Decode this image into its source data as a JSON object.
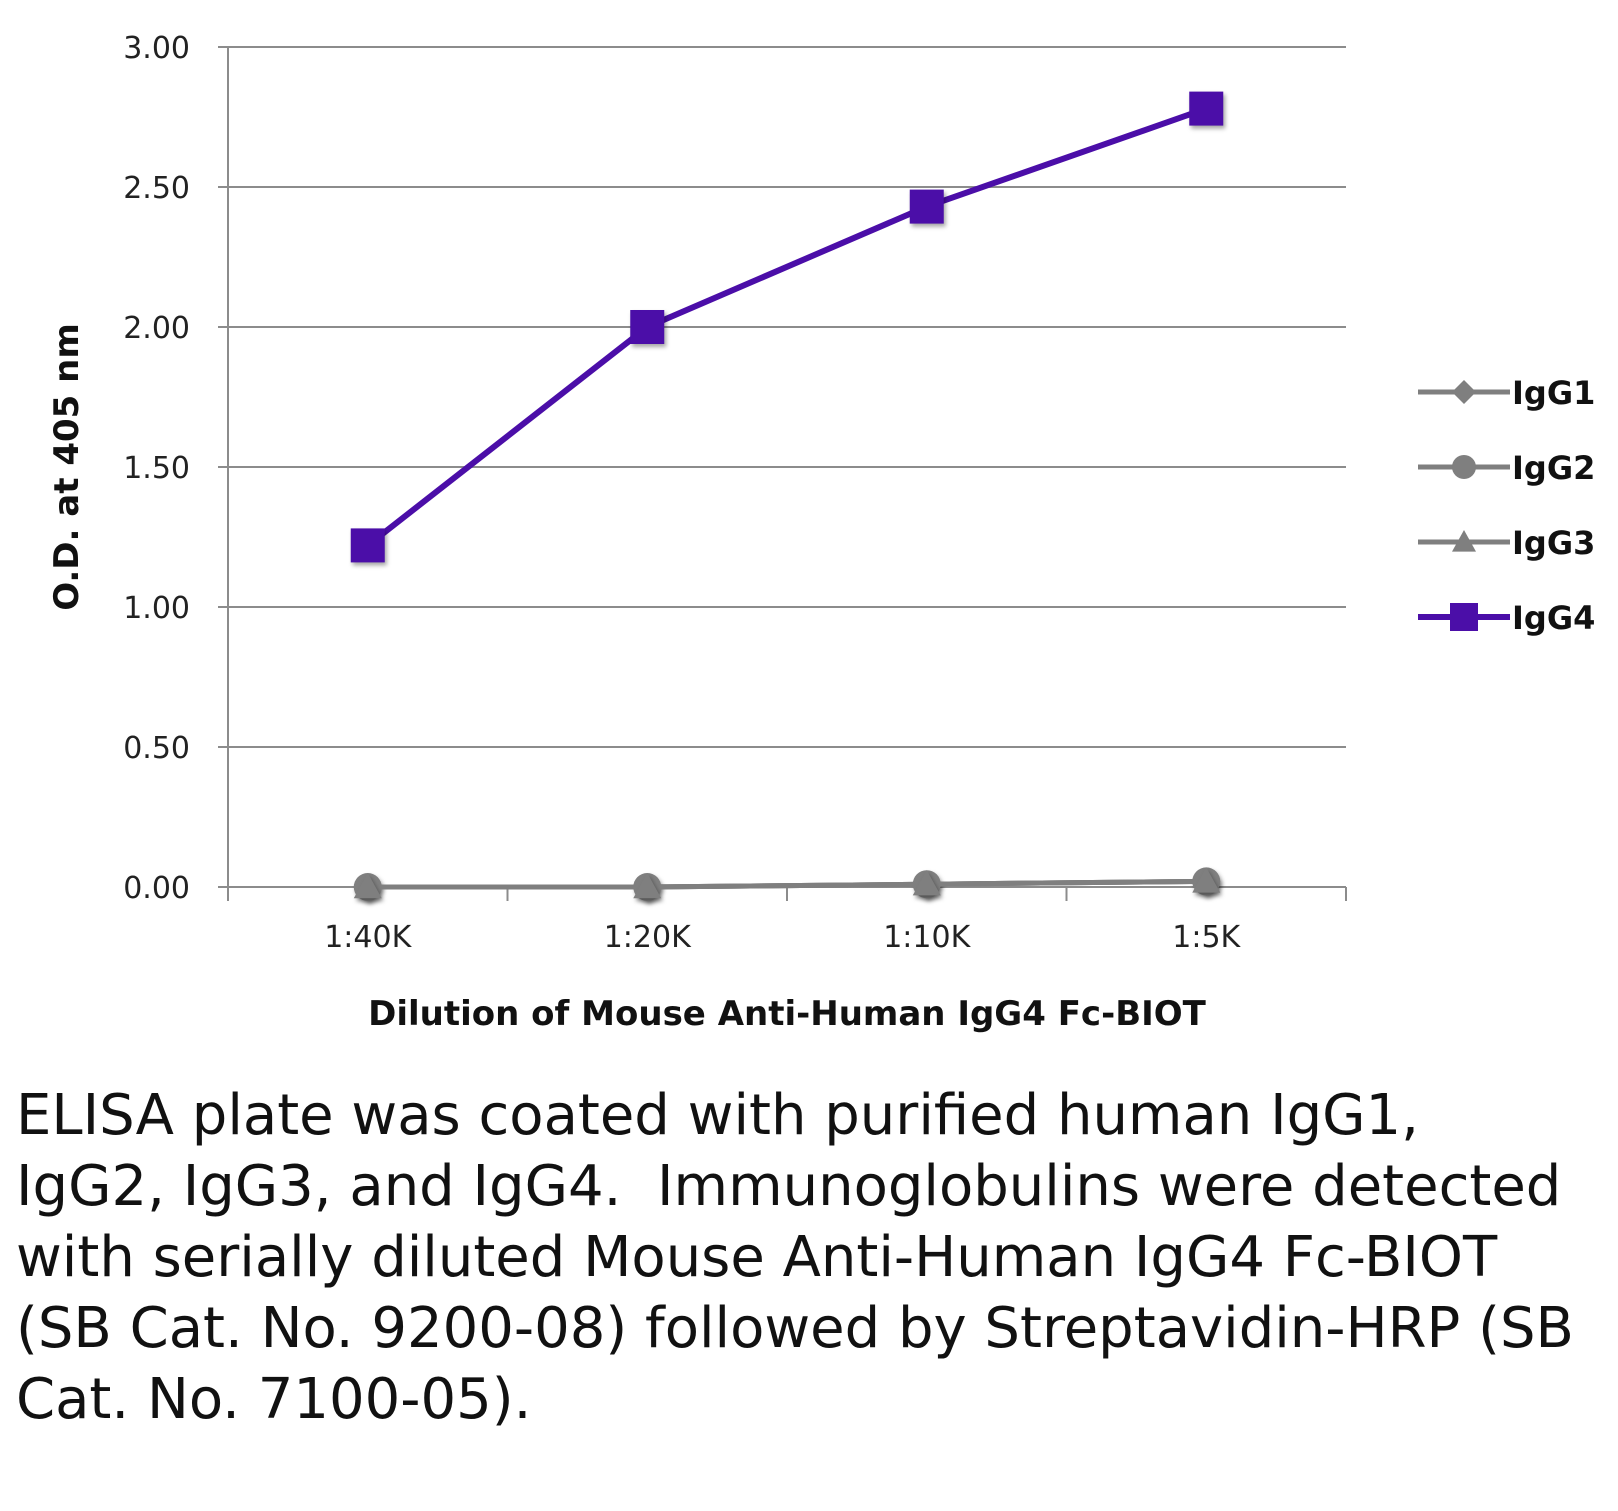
{
  "chart_data": {
    "type": "line",
    "categories": [
      "1:40K",
      "1:20K",
      "1:10K",
      "1:5K"
    ],
    "series": [
      {
        "name": "IgG1",
        "marker": "diamond",
        "color": "#7f7f7f",
        "values": [
          0.0,
          0.0,
          0.01,
          0.02
        ]
      },
      {
        "name": "IgG2",
        "marker": "circle",
        "color": "#7f7f7f",
        "values": [
          0.0,
          0.0,
          0.01,
          0.02
        ]
      },
      {
        "name": "IgG3",
        "marker": "triangle",
        "color": "#7f7f7f",
        "values": [
          0.0,
          0.0,
          0.01,
          0.02
        ]
      },
      {
        "name": "IgG4",
        "marker": "square",
        "color": "#4b0ea8",
        "values": [
          1.22,
          2.0,
          2.43,
          2.78
        ]
      }
    ],
    "yticks": [
      "0.00",
      "0.50",
      "1.00",
      "1.50",
      "2.00",
      "2.50",
      "3.00"
    ],
    "ylim": [
      0,
      3
    ],
    "xlabel": "Dilution of Mouse Anti-Human IgG4 Fc-BIOT",
    "ylabel": "O.D. at 405 nm",
    "grid": true,
    "legend_position": "right"
  },
  "caption": "ELISA plate was coated with purified human IgG1, IgG2, IgG3, and IgG4.  Immunoglobulins were detected with serially diluted Mouse Anti-Human IgG4 Fc-BIOT (SB Cat. No. 9200-08) followed by Streptavidin-HRP (SB Cat. No. 7100-05)."
}
